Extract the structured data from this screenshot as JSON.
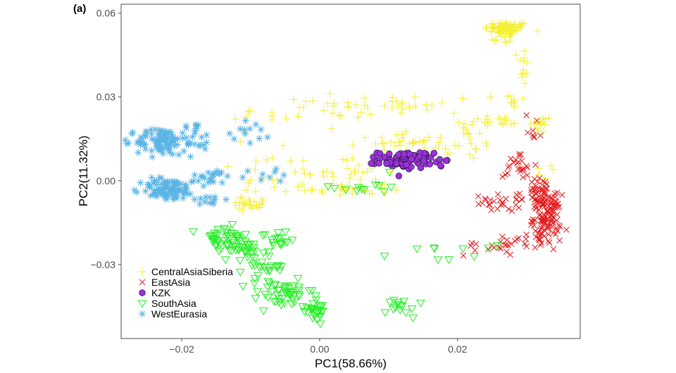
{
  "panel_label": "(a)",
  "chart_data": {
    "type": "scatter",
    "title": "",
    "xlabel": "PC1(58.66%)",
    "ylabel": "PC2(11.32%)",
    "xlim": [
      -0.0288,
      0.0378
    ],
    "ylim": [
      -0.0565,
      0.0632
    ],
    "x_ticks": [
      -0.02,
      0.0,
      0.02
    ],
    "x_tick_labels": [
      "−0.02",
      "0.00",
      "0.02"
    ],
    "y_ticks": [
      -0.03,
      0.0,
      0.03,
      0.06
    ],
    "y_tick_labels": [
      "−0.03",
      "0.00",
      "0.03",
      "0.06"
    ],
    "grid": false,
    "legend_position": "bottom-left",
    "series": [
      {
        "name": "CentralAsiaSiberia",
        "marker": "plus",
        "color": "#f5ef2e",
        "clusters": [
          {
            "cx": 0.0272,
            "cy": 0.0545,
            "sx": 0.0016,
            "sy": 0.0013,
            "n": 70
          },
          {
            "cx": 0.0265,
            "cy": 0.051,
            "sx": 0.0008,
            "sy": 0.0012,
            "n": 10
          },
          {
            "cx": 0.0295,
            "cy": 0.041,
            "sx": 0.0004,
            "sy": 0.0035,
            "n": 12
          },
          {
            "cx": 0.028,
            "cy": 0.029,
            "sx": 0.0008,
            "sy": 0.002,
            "n": 10
          },
          {
            "cx": 0.0245,
            "cy": 0.021,
            "sx": 0.003,
            "sy": 0.0015,
            "n": 25
          },
          {
            "cx": 0.032,
            "cy": 0.02,
            "sx": 0.0009,
            "sy": 0.0018,
            "n": 15
          },
          {
            "cx": 0.02,
            "cy": 0.013,
            "sx": 0.003,
            "sy": 0.0028,
            "n": 25
          },
          {
            "cx": 0.011,
            "cy": 0.027,
            "sx": 0.006,
            "sy": 0.002,
            "n": 35
          },
          {
            "cx": -0.003,
            "cy": 0.024,
            "sx": 0.005,
            "sy": 0.003,
            "n": 20
          },
          {
            "cx": 0.011,
            "cy": 0.014,
            "sx": 0.0025,
            "sy": 0.0015,
            "n": 25
          },
          {
            "cx": 0.004,
            "cy": -0.003,
            "sx": 0.003,
            "sy": 0.0015,
            "n": 30
          },
          {
            "cx": 0.004,
            "cy": 0.003,
            "sx": 0.003,
            "sy": 0.0025,
            "n": 25
          },
          {
            "cx": -0.01,
            "cy": -0.008,
            "sx": 0.0016,
            "sy": 0.0012,
            "n": 25
          },
          {
            "cx": -0.007,
            "cy": 0.007,
            "sx": 0.003,
            "sy": 0.004,
            "n": 10
          },
          {
            "cx": -0.006,
            "cy": -0.001,
            "sx": 0.0025,
            "sy": 0.002,
            "n": 10
          },
          {
            "cx": 0.032,
            "cy": 0.003,
            "sx": 0.0008,
            "sy": 0.0012,
            "n": 5
          }
        ]
      },
      {
        "name": "EastAsia",
        "marker": "x",
        "color": "#e41a1c",
        "clusters": [
          {
            "cx": 0.033,
            "cy": -0.013,
            "sx": 0.001,
            "sy": 0.004,
            "n": 110
          },
          {
            "cx": 0.032,
            "cy": -0.004,
            "sx": 0.0012,
            "sy": 0.0025,
            "n": 35
          },
          {
            "cx": 0.029,
            "cy": 0.005,
            "sx": 0.0012,
            "sy": 0.0035,
            "n": 25
          },
          {
            "cx": 0.031,
            "cy": 0.019,
            "sx": 0.0006,
            "sy": 0.0025,
            "n": 8
          },
          {
            "cx": 0.027,
            "cy": -0.008,
            "sx": 0.0022,
            "sy": 0.0015,
            "n": 30
          },
          {
            "cx": 0.025,
            "cy": -0.023,
            "sx": 0.002,
            "sy": 0.002,
            "n": 20
          },
          {
            "cx": 0.031,
            "cy": -0.021,
            "sx": 0.0015,
            "sy": 0.0015,
            "n": 15
          }
        ]
      },
      {
        "name": "KZK",
        "marker": "circle",
        "color": "#9b30e0",
        "clusters": [
          {
            "cx": 0.0125,
            "cy": 0.0075,
            "sx": 0.002,
            "sy": 0.0015,
            "n": 90
          },
          {
            "cx": 0.0175,
            "cy": 0.005,
            "sx": 0.0004,
            "sy": 0.001,
            "n": 2
          }
        ]
      },
      {
        "name": "SouthAsia",
        "marker": "triangle-down",
        "color": "#22ee22",
        "clusters": [
          {
            "cx": -0.014,
            "cy": -0.021,
            "sx": 0.0018,
            "sy": 0.0025,
            "n": 40
          },
          {
            "cx": -0.011,
            "cy": -0.024,
            "sx": 0.0015,
            "sy": 0.002,
            "n": 25
          },
          {
            "cx": -0.008,
            "cy": -0.031,
            "sx": 0.0015,
            "sy": 0.0035,
            "n": 30
          },
          {
            "cx": -0.005,
            "cy": -0.041,
            "sx": 0.002,
            "sy": 0.0025,
            "n": 45
          },
          {
            "cx": -0.001,
            "cy": -0.046,
            "sx": 0.0012,
            "sy": 0.002,
            "n": 25
          },
          {
            "cx": -0.006,
            "cy": -0.021,
            "sx": 0.0012,
            "sy": 0.0015,
            "n": 15
          },
          {
            "cx": 0.012,
            "cy": -0.045,
            "sx": 0.0012,
            "sy": 0.002,
            "n": 15
          },
          {
            "cx": 0.006,
            "cy": -0.002,
            "sx": 0.0025,
            "sy": 0.0015,
            "n": 12
          },
          {
            "cx": 0.018,
            "cy": -0.024,
            "sx": 0.0035,
            "sy": 0.003,
            "n": 10
          }
        ]
      },
      {
        "name": "WestEurasia",
        "marker": "asterisk",
        "color": "#5ab4e5",
        "clusters": [
          {
            "cx": -0.023,
            "cy": 0.014,
            "sx": 0.0018,
            "sy": 0.0025,
            "n": 90
          },
          {
            "cx": -0.022,
            "cy": -0.003,
            "sx": 0.002,
            "sy": 0.002,
            "n": 90
          },
          {
            "cx": -0.018,
            "cy": 0.015,
            "sx": 0.0012,
            "sy": 0.003,
            "n": 25
          },
          {
            "cx": -0.016,
            "cy": 0.001,
            "sx": 0.0015,
            "sy": 0.0015,
            "n": 20
          },
          {
            "cx": -0.016,
            "cy": -0.007,
            "sx": 0.0015,
            "sy": 0.001,
            "n": 12
          },
          {
            "cx": -0.009,
            "cy": 0.003,
            "sx": 0.004,
            "sy": 0.002,
            "n": 12
          },
          {
            "cx": -0.01,
            "cy": 0.018,
            "sx": 0.0015,
            "sy": 0.0022,
            "n": 12
          }
        ]
      }
    ]
  }
}
